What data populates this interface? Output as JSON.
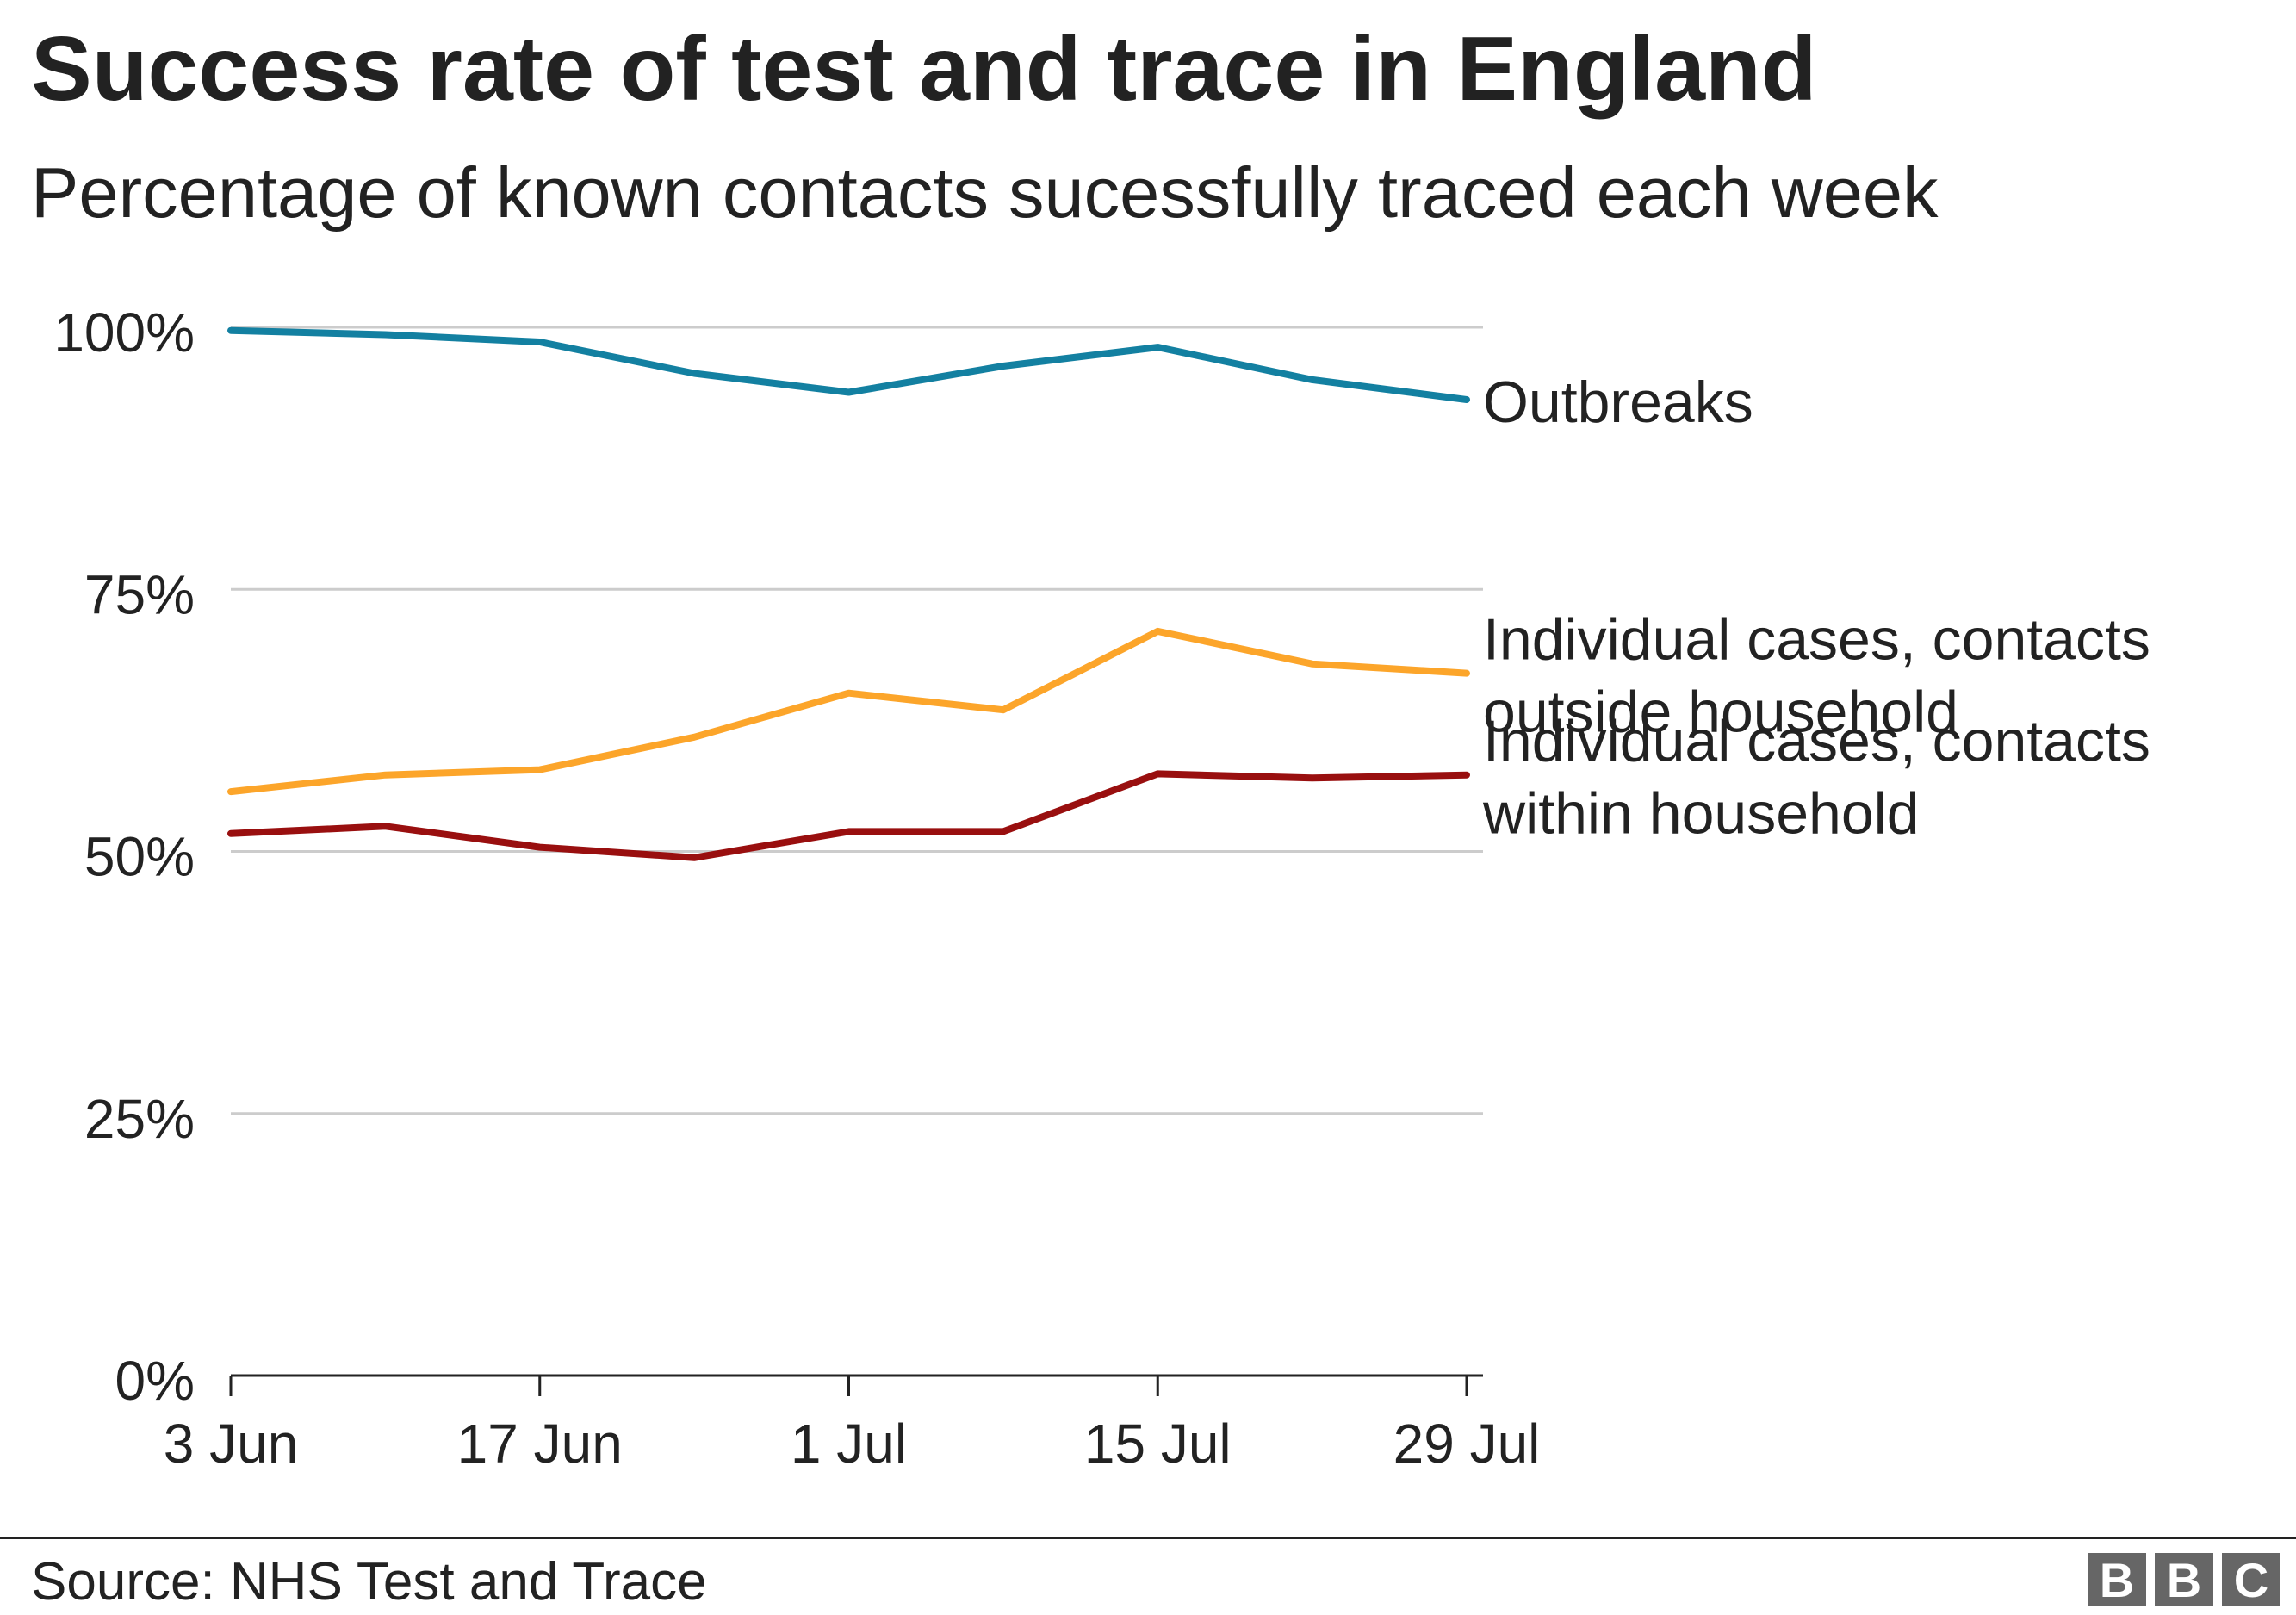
{
  "chart_data": {
    "type": "line",
    "title": "Success rate of test and trace in England",
    "subtitle": "Percentage of known contacts sucessfully traced each week",
    "x": [
      "3 Jun",
      "10 Jun",
      "17 Jun",
      "24 Jun",
      "1 Jul",
      "8 Jul",
      "15 Jul",
      "22 Jul",
      "29 Jul"
    ],
    "x_tick_labels": [
      "3 Jun",
      "17 Jun",
      "1 Jul",
      "15 Jul",
      "29 Jul"
    ],
    "y_tick_labels": [
      "0%",
      "25%",
      "50%",
      "75%",
      "100%"
    ],
    "y_ticks": [
      0,
      25,
      50,
      75,
      100
    ],
    "ylim": [
      0,
      100
    ],
    "y_unit": "%",
    "grid": true,
    "series": [
      {
        "name": "Outbreaks",
        "label_lines": [
          "Outbreaks"
        ],
        "color": "#1380a1",
        "values": [
          99.7,
          99.3,
          98.6,
          95.6,
          93.8,
          96.3,
          98.1,
          95.0,
          93.1
        ]
      },
      {
        "name": "Individual cases, contacts outside household",
        "label_lines": [
          "Individual cases, contacts",
          "outside household"
        ],
        "color": "#fca52a",
        "values": [
          55.7,
          57.3,
          57.8,
          60.9,
          65.1,
          63.5,
          71.0,
          67.9,
          67.0
        ]
      },
      {
        "name": "Individual cases, contacts within household",
        "label_lines": [
          "Individual cases, contacts",
          "within household"
        ],
        "color": "#990f0f",
        "values": [
          51.7,
          52.4,
          50.4,
          49.4,
          51.9,
          51.9,
          57.4,
          57.0,
          57.3
        ]
      }
    ]
  },
  "footer": {
    "source": "Source: NHS Test and Trace",
    "logo_letters": [
      "B",
      "B",
      "C"
    ]
  }
}
